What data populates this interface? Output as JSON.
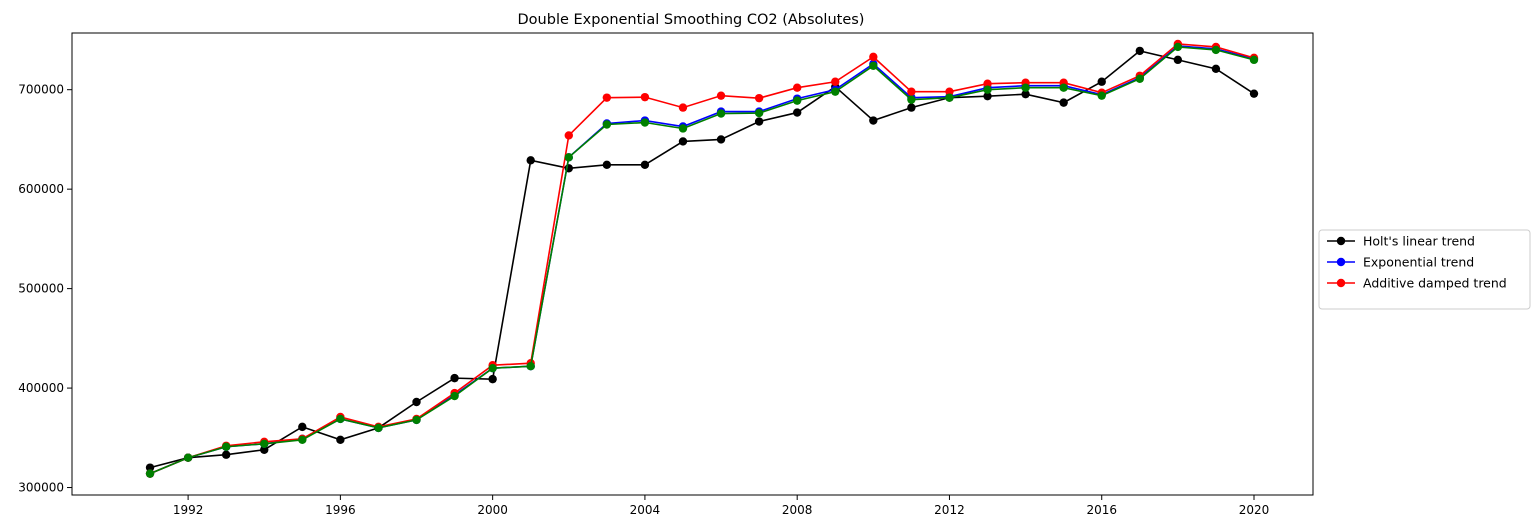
{
  "chart_data": {
    "type": "line",
    "title": "Double Exponential Smoothing CO2 (Absolutes)",
    "xlabel": "",
    "ylabel": "",
    "xlim": [
      1988.95,
      2021.55
    ],
    "ylim": [
      292500,
      757000
    ],
    "x_ticks": [
      1992,
      1996,
      2000,
      2004,
      2008,
      2012,
      2016,
      2020
    ],
    "y_ticks": [
      300000,
      400000,
      500000,
      600000,
      700000
    ],
    "x": [
      1991,
      1992,
      1993,
      1994,
      1995,
      1996,
      1997,
      1998,
      1999,
      2000,
      2001,
      2002,
      2003,
      2004,
      2005,
      2006,
      2007,
      2008,
      2009,
      2010,
      2011,
      2012,
      2013,
      2014,
      2015,
      2016,
      2017,
      2018,
      2019,
      2020
    ],
    "legend_position": "outside-right",
    "grid": false,
    "series": [
      {
        "name": "Holt's linear trend",
        "color": "#000000",
        "in_legend": true,
        "values": [
          320000,
          330000,
          333000,
          338000,
          361000,
          348000,
          360000,
          386000,
          410000,
          409000,
          629000,
          621000,
          624500,
          624500,
          648000,
          650000,
          668000,
          677000,
          703000,
          669000,
          682000,
          692000,
          693500,
          695500,
          687000,
          708000,
          739000,
          730000,
          721000,
          696000
        ]
      },
      {
        "name": "Exponential trend",
        "color": "#0000ff",
        "in_legend": true,
        "values": [
          314000,
          330000,
          341000,
          344000,
          349000,
          369000,
          360000,
          368000,
          393000,
          420000,
          422000,
          632000,
          666000,
          669000,
          663000,
          678000,
          678000,
          691000,
          700000,
          726000,
          692000,
          693000,
          702000,
          704000,
          704000,
          695000,
          712000,
          744000,
          741000,
          731000
        ]
      },
      {
        "name": "Additive damped trend",
        "color": "#ff0000",
        "in_legend": true,
        "values": [
          314000,
          330000,
          342000,
          346000,
          349000,
          371000,
          361000,
          369000,
          395000,
          423000,
          425000,
          654000,
          692000,
          692500,
          682000,
          694000,
          691500,
          702000,
          708000,
          733000,
          698000,
          698000,
          706000,
          707000,
          707000,
          697000,
          714000,
          746000,
          743000,
          732000
        ]
      },
      {
        "name": "",
        "color": "#008000",
        "in_legend": false,
        "values": [
          314000,
          330000,
          341000,
          344000,
          348000,
          369000,
          360000,
          368000,
          392000,
          420000,
          422000,
          632000,
          665000,
          667000,
          661000,
          676000,
          676500,
          689000,
          698000,
          724000,
          690000,
          692000,
          700000,
          702000,
          702000,
          694000,
          711000,
          743000,
          740000,
          730000
        ]
      }
    ]
  }
}
